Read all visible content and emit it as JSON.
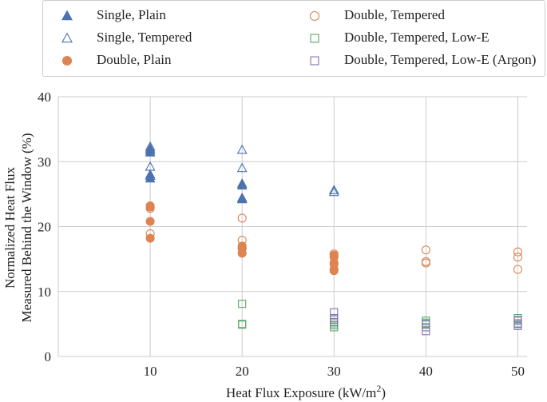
{
  "chart_data": {
    "type": "scatter",
    "xlabel": "Heat Flux Exposure (kW/m",
    "xlabel_sup": "2",
    "xlabel_close": ")",
    "ylabel_line1": "Normalized Heat Flux",
    "ylabel_line2": "Measured Behind the Window (%)",
    "xlim": [
      0,
      51
    ],
    "ylim": [
      0,
      40
    ],
    "xticks": [
      10,
      20,
      30,
      40,
      50
    ],
    "yticks": [
      0,
      10,
      20,
      30,
      40
    ],
    "grid": true,
    "legend_position": "top",
    "series": [
      {
        "name": "Single, Plain",
        "marker": "triangle",
        "filled": true,
        "color": "#4c72b0",
        "points": [
          [
            10,
            32.0
          ],
          [
            10,
            31.7
          ],
          [
            10,
            31.4
          ],
          [
            10,
            28.0
          ],
          [
            10,
            27.4
          ],
          [
            20,
            26.6
          ],
          [
            20,
            26.3
          ],
          [
            20,
            24.4
          ],
          [
            20,
            24.2
          ]
        ]
      },
      {
        "name": "Single, Tempered",
        "marker": "triangle",
        "filled": false,
        "color": "#4c72b0",
        "points": [
          [
            10,
            32.3
          ],
          [
            10,
            29.2
          ],
          [
            10,
            27.8
          ],
          [
            20,
            31.8
          ],
          [
            20,
            29.0
          ],
          [
            30,
            25.6
          ],
          [
            30,
            25.3
          ]
        ]
      },
      {
        "name": "Double, Plain",
        "marker": "circle",
        "filled": true,
        "color": "#dd8452",
        "points": [
          [
            10,
            23.2
          ],
          [
            10,
            23.0
          ],
          [
            10,
            20.8
          ],
          [
            10,
            18.2
          ],
          [
            20,
            17.0
          ],
          [
            20,
            16.6
          ],
          [
            20,
            15.9
          ],
          [
            30,
            15.6
          ],
          [
            30,
            15.3
          ],
          [
            30,
            14.4
          ],
          [
            30,
            14.2
          ],
          [
            30,
            13.4
          ],
          [
            30,
            13.2
          ]
        ]
      },
      {
        "name": "Double, Tempered",
        "marker": "circle",
        "filled": false,
        "color": "#dd8452",
        "points": [
          [
            10,
            18.9
          ],
          [
            10,
            22.8
          ],
          [
            20,
            21.3
          ],
          [
            20,
            17.9
          ],
          [
            20,
            16.7
          ],
          [
            30,
            15.8
          ],
          [
            40,
            16.4
          ],
          [
            40,
            14.6
          ],
          [
            40,
            14.4
          ],
          [
            50,
            16.1
          ],
          [
            50,
            15.3
          ],
          [
            50,
            13.4
          ]
        ]
      },
      {
        "name": "Double, Tempered, Low-E",
        "marker": "square",
        "filled": false,
        "color": "#55a868",
        "points": [
          [
            20,
            8.1
          ],
          [
            20,
            5.0
          ],
          [
            20,
            4.9
          ],
          [
            30,
            5.7
          ],
          [
            30,
            5.1
          ],
          [
            30,
            4.8
          ],
          [
            30,
            4.5
          ],
          [
            40,
            5.5
          ],
          [
            40,
            5.2
          ],
          [
            40,
            4.9
          ],
          [
            50,
            5.9
          ],
          [
            50,
            5.5
          ],
          [
            50,
            5.1
          ]
        ]
      },
      {
        "name": "Double, Tempered, Low-E (Argon)",
        "marker": "square",
        "filled": false,
        "color": "#8172b3",
        "points": [
          [
            30,
            6.8
          ],
          [
            30,
            5.9
          ],
          [
            30,
            5.3
          ],
          [
            40,
            5.0
          ],
          [
            40,
            4.5
          ],
          [
            40,
            3.9
          ],
          [
            50,
            5.6
          ],
          [
            50,
            5.0
          ],
          [
            50,
            4.7
          ]
        ]
      }
    ]
  }
}
